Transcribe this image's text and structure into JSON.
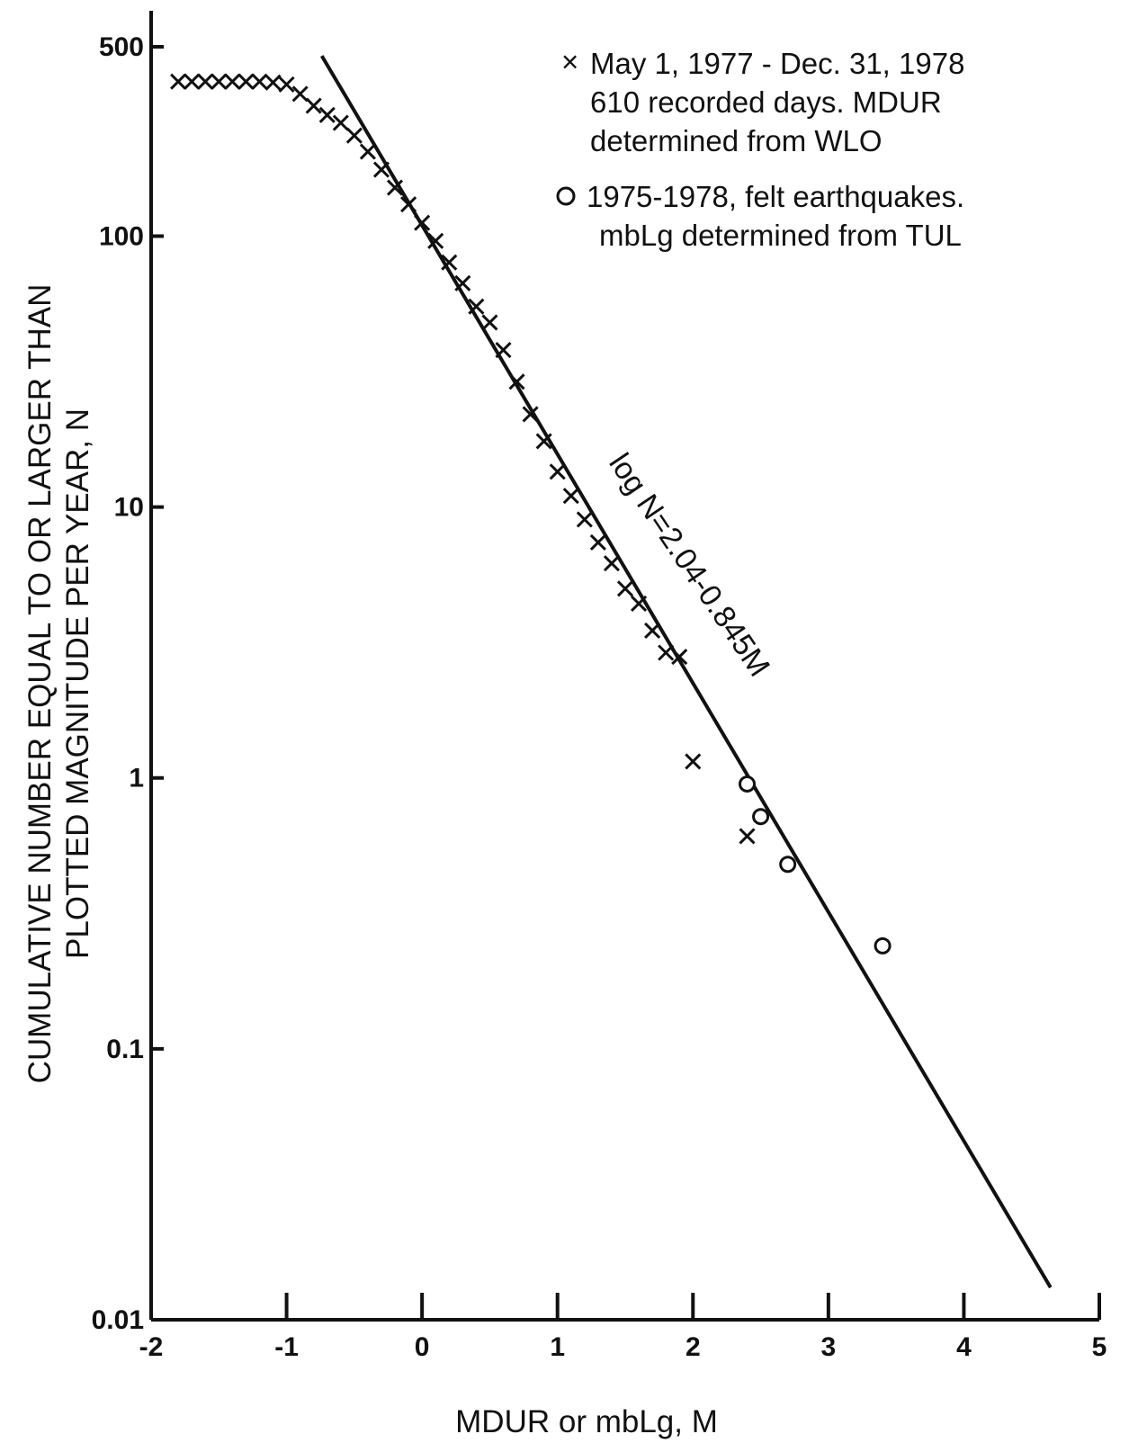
{
  "chart_data": {
    "type": "scatter",
    "title": "",
    "xlabel": "MDUR or mbLg, M",
    "ylabel_line1": "CUMULATIVE NUMBER EQUAL TO OR LARGER THAN",
    "ylabel_line2": "PLOTTED MAGNITUDE PER YEAR, N",
    "xlim": [
      -2,
      5
    ],
    "ylim": [
      0.01,
      500
    ],
    "yscale": "log",
    "grid": false,
    "x_ticks": [
      -2,
      -1,
      0,
      1,
      2,
      3,
      4,
      5
    ],
    "x_tick_labels": [
      "-2",
      "-1",
      "0",
      "1",
      "2",
      "3",
      "4",
      "5"
    ],
    "y_ticks": [
      500,
      100,
      10,
      1,
      0.1,
      0.01
    ],
    "y_tick_labels": [
      "500",
      "100",
      "10",
      "1",
      "0.1",
      "0.01"
    ],
    "legend_position": "top-right",
    "series": [
      {
        "name": "May 1, 1977 - Dec. 31, 1978\n610 recorded days. MDUR\ndetermined from WLO",
        "marker": "x",
        "legend_lines": [
          "May 1, 1977 - Dec. 31, 1978",
          "610 recorded days. MDUR",
          "determined from WLO"
        ],
        "x": [
          -1.8,
          -1.7,
          -1.6,
          -1.5,
          -1.4,
          -1.3,
          -1.2,
          -1.1,
          -1.0,
          -0.9,
          -0.8,
          -0.7,
          -0.6,
          -0.5,
          -0.4,
          -0.3,
          -0.2,
          -0.1,
          0.0,
          0.1,
          0.2,
          0.3,
          0.4,
          0.5,
          0.6,
          0.7,
          0.8,
          0.9,
          1.0,
          1.1,
          1.2,
          1.3,
          1.4,
          1.5,
          1.6,
          1.7,
          1.8,
          1.9,
          2.0,
          2.4
        ],
        "y": [
          372,
          372,
          372,
          372,
          372,
          372,
          372,
          369,
          363,
          335,
          303,
          280,
          262,
          235,
          205,
          176,
          151,
          131,
          112,
          96,
          80,
          67,
          55,
          48,
          38,
          29,
          22,
          17.5,
          13.5,
          11.0,
          9.0,
          7.4,
          6.2,
          5.0,
          4.4,
          3.5,
          2.9,
          2.8,
          1.15,
          0.61
        ]
      },
      {
        "name": "1975-1978, felt earthquakes.\nmbLg determined from TUL",
        "marker": "o",
        "legend_lines": [
          "1975-1978, felt earthquakes.",
          "mbLg determined from TUL"
        ],
        "x": [
          2.4,
          2.5,
          2.7,
          3.4
        ],
        "y": [
          0.95,
          0.72,
          0.48,
          0.24
        ]
      }
    ],
    "fit_line": {
      "label": "log N=2.04-0.845M",
      "intercept": 2.04,
      "slope": -0.845,
      "x_range": [
        -0.74,
        4.64
      ]
    }
  }
}
